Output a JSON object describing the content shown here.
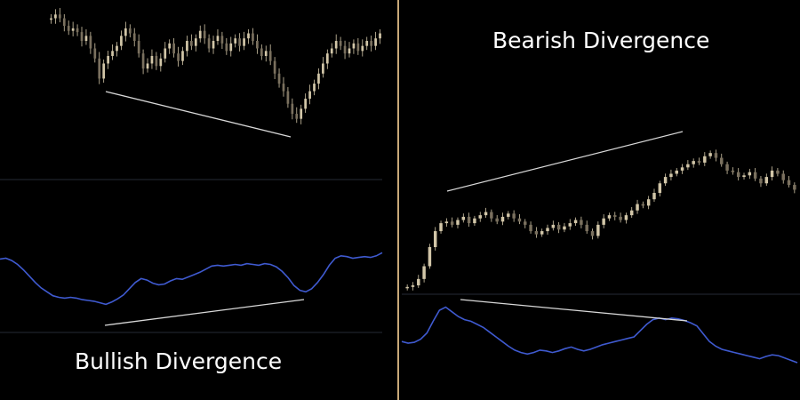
{
  "colors": {
    "background": "#000000",
    "divider": "#c8a878",
    "pane_separator": "#262a36",
    "candle": "#d2c6a8",
    "oscillator": "#3f5ad0",
    "trendline": "#d8d8d8"
  },
  "chart_data": [
    {
      "type": "line",
      "title": "Bullish Divergence",
      "xlabel": "",
      "ylabel": "",
      "grid": false,
      "price": {
        "style": "candlestick",
        "close": [
          100,
          101.5,
          100,
          97,
          95,
          96,
          94.5,
          91,
          93,
          88,
          84,
          76,
          82,
          85,
          87,
          89,
          93,
          96,
          94,
          91,
          86,
          80,
          82,
          85,
          81,
          84,
          88,
          90,
          86,
          83,
          87,
          91,
          89,
          92,
          95,
          92,
          88,
          91,
          93,
          90,
          87,
          90,
          92,
          89,
          92,
          94,
          91,
          88,
          85,
          87,
          83,
          78,
          74,
          71,
          66,
          62,
          60,
          64,
          68,
          71,
          74,
          78,
          82,
          86,
          88,
          91,
          89,
          86,
          88,
          90,
          87,
          89,
          91,
          89,
          92,
          94
        ],
        "trendline": {
          "from": [
            0.28,
            0.18
          ],
          "to": [
            0.74,
            0.0
          ]
        }
      },
      "oscillator": {
        "values": [
          78,
          79,
          76,
          71,
          64,
          56,
          48,
          41,
          36,
          31,
          29,
          28,
          29,
          28,
          26,
          25,
          24,
          22,
          20,
          23,
          27,
          32,
          40,
          48,
          53,
          51,
          47,
          45,
          46,
          50,
          53,
          52,
          55,
          58,
          61,
          65,
          69,
          70,
          69,
          70,
          71,
          70,
          72,
          71,
          70,
          72,
          71,
          68,
          62,
          54,
          44,
          38,
          36,
          40,
          48,
          58,
          70,
          79,
          82,
          81,
          79,
          80,
          81,
          80,
          82,
          86
        ],
        "trendline": {
          "from": [
            0.28,
            0.0
          ],
          "to": [
            0.78,
            0.12
          ]
        }
      }
    },
    {
      "type": "line",
      "title": "Bearish Divergence",
      "xlabel": "",
      "ylabel": "",
      "grid": false,
      "price": {
        "style": "candlestick",
        "close": [
          5,
          6,
          10,
          18,
          30,
          40,
          45,
          46,
          44,
          47,
          49,
          45,
          48,
          50,
          52,
          48,
          46,
          49,
          51,
          48,
          46,
          44,
          40,
          38,
          40,
          42,
          44,
          41,
          43,
          45,
          47,
          44,
          40,
          37,
          44,
          48,
          50,
          49,
          47,
          50,
          53,
          57,
          56,
          60,
          64,
          70,
          74,
          76,
          78,
          80,
          82,
          84,
          83,
          87,
          89,
          86,
          82,
          78,
          77,
          74,
          75,
          77,
          73,
          70,
          74,
          78,
          76,
          72,
          69,
          66
        ],
        "trendline": {
          "from": [
            0.12,
            0.78
          ],
          "to": [
            0.72,
            1.0
          ]
        }
      },
      "oscillator": {
        "values": [
          52,
          50,
          51,
          55,
          63,
          78,
          92,
          96,
          90,
          84,
          80,
          78,
          74,
          70,
          64,
          58,
          52,
          46,
          41,
          38,
          36,
          38,
          41,
          40,
          38,
          40,
          43,
          45,
          42,
          40,
          42,
          45,
          48,
          50,
          52,
          54,
          56,
          58,
          66,
          74,
          80,
          82,
          80,
          82,
          81,
          79,
          76,
          72,
          62,
          52,
          46,
          42,
          40,
          38,
          36,
          34,
          32,
          30,
          33,
          35,
          34,
          31,
          28,
          25
        ],
        "trendline": {
          "from": [
            0.12,
            0.96
          ],
          "to": [
            0.76,
            0.78
          ]
        }
      }
    }
  ]
}
